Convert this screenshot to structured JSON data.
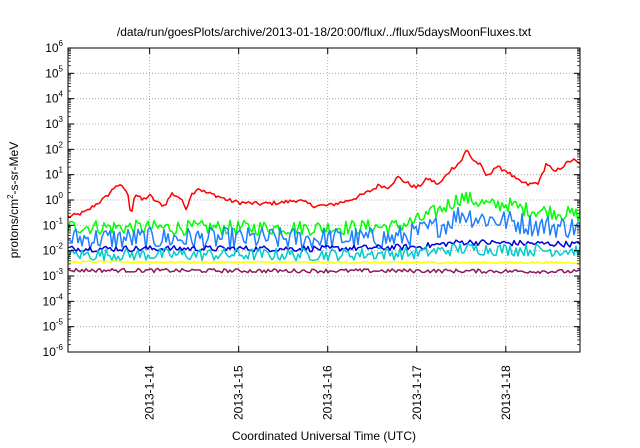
{
  "chart_data": {
    "type": "line",
    "title": "/data/run/goesPlots/archive/2013-01-18/20:00/flux/../flux/5daysMoonFluxes.txt",
    "xlabel": "Coordinated Universal Time (UTC)",
    "ylabel": {
      "pre": "protons/cm",
      "sup": "2",
      "post": "-s-sr-MeV"
    },
    "y_scale": "log",
    "ylim": [
      1e-06,
      1000000.0
    ],
    "y_ticks": [
      {
        "value": 1e-06,
        "base": "10",
        "exp": "-6"
      },
      {
        "value": 1e-05,
        "base": "10",
        "exp": "-5"
      },
      {
        "value": 0.0001,
        "base": "10",
        "exp": "-4"
      },
      {
        "value": 0.001,
        "base": "10",
        "exp": "-3"
      },
      {
        "value": 0.01,
        "base": "10",
        "exp": "-2"
      },
      {
        "value": 0.1,
        "base": "10",
        "exp": "-1"
      },
      {
        "value": 1.0,
        "base": "10",
        "exp": "0"
      },
      {
        "value": 10.0,
        "base": "10",
        "exp": "1"
      },
      {
        "value": 100.0,
        "base": "10",
        "exp": "2"
      },
      {
        "value": 1000.0,
        "base": "10",
        "exp": "3"
      },
      {
        "value": 10000.0,
        "base": "10",
        "exp": "4"
      },
      {
        "value": 100000.0,
        "base": "10",
        "exp": "5"
      },
      {
        "value": 1000000.0,
        "base": "10",
        "exp": "6"
      }
    ],
    "xlim": [
      "2013-01-13T02:00",
      "2013-01-18T20:00"
    ],
    "x_ticks": [
      {
        "value": "2013-01-14T00:00",
        "label": "2013-1-14"
      },
      {
        "value": "2013-01-15T00:00",
        "label": "2013-1-15"
      },
      {
        "value": "2013-01-16T00:00",
        "label": "2013-1-16"
      },
      {
        "value": "2013-01-17T00:00",
        "label": "2013-1-17"
      },
      {
        "value": "2013-01-18T00:00",
        "label": "2013-1-18"
      }
    ],
    "grid": true,
    "series": [
      {
        "color": "#ff0000",
        "noise": 0.08,
        "points": [
          [
            "2013-01-13T02:00",
            0.22
          ],
          [
            "2013-01-13T04:00",
            0.25
          ],
          [
            "2013-01-13T07:00",
            0.35
          ],
          [
            "2013-01-13T09:00",
            0.6
          ],
          [
            "2013-01-13T12:00",
            1.2
          ],
          [
            "2013-01-13T14:00",
            2.5
          ],
          [
            "2013-01-13T15:00",
            4.0
          ],
          [
            "2013-01-13T17:00",
            3.0
          ],
          [
            "2013-01-13T18:00",
            2.0
          ],
          [
            "2013-01-13T19:00",
            0.25
          ],
          [
            "2013-01-13T20:00",
            1.8
          ],
          [
            "2013-01-13T22:00",
            1.0
          ],
          [
            "2013-01-14T00:00",
            1.5
          ],
          [
            "2013-01-14T02:00",
            0.8
          ],
          [
            "2013-01-14T04:00",
            0.6
          ],
          [
            "2013-01-14T06:00",
            1.8
          ],
          [
            "2013-01-14T08:00",
            1.3
          ],
          [
            "2013-01-14T10:00",
            0.45
          ],
          [
            "2013-01-14T11:00",
            1.5
          ],
          [
            "2013-01-14T13:00",
            3.0
          ],
          [
            "2013-01-14T15:00",
            2.0
          ],
          [
            "2013-01-14T18:00",
            1.5
          ],
          [
            "2013-01-14T21:00",
            1.0
          ],
          [
            "2013-01-15T00:00",
            0.8
          ],
          [
            "2013-01-15T06:00",
            0.7
          ],
          [
            "2013-01-15T12:00",
            0.8
          ],
          [
            "2013-01-15T16:00",
            1.0
          ],
          [
            "2013-01-15T20:00",
            0.6
          ],
          [
            "2013-01-16T00:00",
            0.6
          ],
          [
            "2013-01-16T05:00",
            0.9
          ],
          [
            "2013-01-16T09:00",
            1.5
          ],
          [
            "2013-01-16T12:00",
            2.5
          ],
          [
            "2013-01-16T14:00",
            4.0
          ],
          [
            "2013-01-16T16:00",
            3.0
          ],
          [
            "2013-01-16T19:00",
            8.0
          ],
          [
            "2013-01-16T21:00",
            5.0
          ],
          [
            "2013-01-17T00:00",
            3.0
          ],
          [
            "2013-01-17T03:00",
            7.0
          ],
          [
            "2013-01-17T06:00",
            4.0
          ],
          [
            "2013-01-17T09:00",
            15.0
          ],
          [
            "2013-01-17T12:00",
            35.0
          ],
          [
            "2013-01-17T13:30",
            100.0
          ],
          [
            "2013-01-17T15:00",
            40.0
          ],
          [
            "2013-01-17T17:00",
            25.0
          ],
          [
            "2013-01-17T19:00",
            8.0
          ],
          [
            "2013-01-17T21:00",
            20.0
          ],
          [
            "2013-01-18T00:00",
            15.0
          ],
          [
            "2013-01-18T03:00",
            6.0
          ],
          [
            "2013-01-18T06:00",
            4.0
          ],
          [
            "2013-01-18T09:00",
            5.0
          ],
          [
            "2013-01-18T11:00",
            30.0
          ],
          [
            "2013-01-18T13:00",
            12.0
          ],
          [
            "2013-01-18T15:00",
            20.0
          ],
          [
            "2013-01-18T18:00",
            40.0
          ],
          [
            "2013-01-18T20:00",
            25.0
          ]
        ]
      },
      {
        "color": "#00ff00",
        "noise": 0.3,
        "points": [
          [
            "2013-01-13T02:00",
            0.09
          ],
          [
            "2013-01-14T00:00",
            0.08
          ],
          [
            "2013-01-15T00:00",
            0.08
          ],
          [
            "2013-01-16T00:00",
            0.08
          ],
          [
            "2013-01-16T18:00",
            0.09
          ],
          [
            "2013-01-17T00:00",
            0.15
          ],
          [
            "2013-01-17T06:00",
            0.4
          ],
          [
            "2013-01-17T12:00",
            1.3
          ],
          [
            "2013-01-17T16:00",
            0.9
          ],
          [
            "2013-01-17T20:00",
            0.6
          ],
          [
            "2013-01-18T00:00",
            0.7
          ],
          [
            "2013-01-18T06:00",
            0.4
          ],
          [
            "2013-01-18T12:00",
            0.35
          ],
          [
            "2013-01-18T20:00",
            0.25
          ]
        ]
      },
      {
        "color": "#1e7fff",
        "noise": 0.45,
        "points": [
          [
            "2013-01-13T02:00",
            0.03
          ],
          [
            "2013-01-14T00:00",
            0.03
          ],
          [
            "2013-01-15T00:00",
            0.03
          ],
          [
            "2013-01-16T00:00",
            0.03
          ],
          [
            "2013-01-16T18:00",
            0.03
          ],
          [
            "2013-01-17T00:00",
            0.05
          ],
          [
            "2013-01-17T08:00",
            0.12
          ],
          [
            "2013-01-17T12:00",
            0.3
          ],
          [
            "2013-01-17T16:00",
            0.2
          ],
          [
            "2013-01-18T00:00",
            0.15
          ],
          [
            "2013-01-18T08:00",
            0.1
          ],
          [
            "2013-01-18T20:00",
            0.08
          ]
        ]
      },
      {
        "color": "#0000dd",
        "noise": 0.12,
        "points": [
          [
            "2013-01-13T02:00",
            0.012
          ],
          [
            "2013-01-14T00:00",
            0.012
          ],
          [
            "2013-01-15T00:00",
            0.012
          ],
          [
            "2013-01-16T00:00",
            0.012
          ],
          [
            "2013-01-17T00:00",
            0.014
          ],
          [
            "2013-01-17T12:00",
            0.022
          ],
          [
            "2013-01-18T00:00",
            0.02
          ],
          [
            "2013-01-18T20:00",
            0.018
          ]
        ]
      },
      {
        "color": "#00cccc",
        "noise": 0.25,
        "points": [
          [
            "2013-01-13T02:00",
            0.007
          ],
          [
            "2013-01-15T00:00",
            0.007
          ],
          [
            "2013-01-16T00:00",
            0.007
          ],
          [
            "2013-01-17T00:00",
            0.008
          ],
          [
            "2013-01-17T12:00",
            0.012
          ],
          [
            "2013-01-18T00:00",
            0.011
          ],
          [
            "2013-01-18T20:00",
            0.01
          ]
        ]
      },
      {
        "color": "#ffff00",
        "noise": 0.04,
        "points": [
          [
            "2013-01-13T02:00",
            0.0036
          ],
          [
            "2013-01-15T00:00",
            0.0035
          ],
          [
            "2013-01-17T00:00",
            0.0034
          ],
          [
            "2013-01-18T20:00",
            0.0034
          ]
        ]
      },
      {
        "color": "#8b1a5a",
        "noise": 0.08,
        "points": [
          [
            "2013-01-13T02:00",
            0.0017
          ],
          [
            "2013-01-15T00:00",
            0.0016
          ],
          [
            "2013-01-17T00:00",
            0.0016
          ],
          [
            "2013-01-18T20:00",
            0.0015
          ]
        ]
      }
    ]
  }
}
